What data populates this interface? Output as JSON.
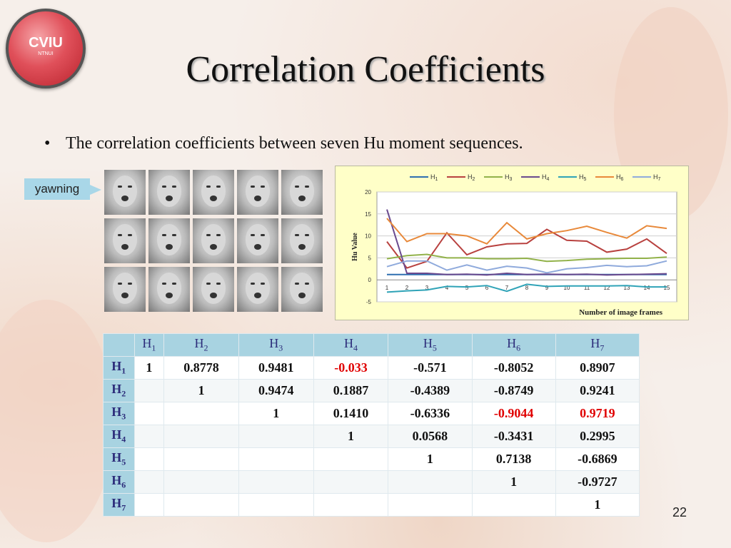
{
  "slide": {
    "logo_text": "CVIU",
    "logo_subtext": "NTNUI",
    "title": "Correlation Coefficients",
    "bullet": "The correlation coefficients between seven Hu moment sequences.",
    "tag": "yawning",
    "page_number": "22"
  },
  "colors": {
    "H1": "#2f6fb0",
    "H2": "#b8413f",
    "H3": "#92b24a",
    "H4": "#6a4a8e",
    "H5": "#2fa3b7",
    "H6": "#e8893a",
    "H7": "#8faadc",
    "table_header_bg": "#a8d3e1",
    "highlight": "#e00000"
  },
  "chart_data": {
    "type": "line",
    "ylabel": "Hu Value",
    "xlabel": "Number of image frames",
    "x": [
      1,
      2,
      3,
      4,
      5,
      6,
      7,
      8,
      9,
      10,
      11,
      12,
      13,
      14,
      15
    ],
    "ylim": [
      -5,
      20
    ],
    "yticks": [
      -5,
      0,
      5,
      10,
      15,
      20
    ],
    "grid": true,
    "legend": "top",
    "series": [
      {
        "name": "H1",
        "values": [
          1.2,
          1.2,
          1.2,
          1.2,
          1.2,
          1.2,
          1.2,
          1.2,
          1.2,
          1.2,
          1.2,
          1.2,
          1.2,
          1.2,
          1.2
        ]
      },
      {
        "name": "H2",
        "values": [
          8.7,
          2.7,
          4.2,
          10.7,
          5.7,
          7.5,
          8.2,
          8.3,
          11.5,
          9.0,
          8.8,
          6.3,
          7.0,
          9.3,
          6.0
        ]
      },
      {
        "name": "H3",
        "values": [
          4.8,
          5.5,
          5.8,
          5.0,
          5.0,
          4.8,
          4.8,
          4.9,
          4.2,
          4.4,
          4.7,
          4.8,
          4.9,
          4.9,
          5.2
        ]
      },
      {
        "name": "H4",
        "values": [
          16.0,
          1.5,
          1.5,
          1.2,
          1.3,
          1.1,
          1.5,
          1.2,
          1.3,
          1.2,
          1.3,
          1.1,
          1.2,
          1.3,
          1.4
        ]
      },
      {
        "name": "H5",
        "values": [
          -2.8,
          -2.5,
          -2.3,
          -1.5,
          -1.6,
          -1.3,
          -2.6,
          -1.0,
          -1.5,
          -1.4,
          -1.4,
          -1.4,
          -1.3,
          -1.6,
          -1.6
        ]
      },
      {
        "name": "H6",
        "values": [
          14.0,
          8.7,
          10.5,
          10.5,
          10.0,
          8.2,
          13.0,
          9.3,
          10.5,
          11.2,
          12.2,
          10.8,
          9.5,
          12.3,
          11.7
        ]
      },
      {
        "name": "H7",
        "values": [
          3.0,
          4.3,
          4.3,
          2.2,
          3.4,
          2.2,
          3.1,
          2.7,
          1.6,
          2.5,
          2.8,
          3.3,
          3.0,
          3.2,
          4.3
        ]
      }
    ]
  },
  "table": {
    "col_headers": [
      {
        "base": "H",
        "sub": "1"
      },
      {
        "base": "H",
        "sub": "2"
      },
      {
        "base": "H",
        "sub": "3"
      },
      {
        "base": "H",
        "sub": "4"
      },
      {
        "base": "H",
        "sub": "5"
      },
      {
        "base": "H",
        "sub": "6"
      },
      {
        "base": "H",
        "sub": "7"
      }
    ],
    "rows": [
      {
        "base": "H",
        "sub": "1",
        "cells": [
          "1",
          "0.8778",
          "0.9481",
          "-0.033",
          "-0.571",
          "-0.8052",
          "0.8907"
        ],
        "highlight": [
          3
        ]
      },
      {
        "base": "H",
        "sub": "2",
        "cells": [
          "",
          "1",
          "0.9474",
          "0.1887",
          "-0.4389",
          "-0.8749",
          "0.9241"
        ],
        "highlight": []
      },
      {
        "base": "H",
        "sub": "3",
        "cells": [
          "",
          "",
          "1",
          "0.1410",
          "-0.6336",
          "-0.9044",
          "0.9719"
        ],
        "highlight": [
          5,
          6
        ]
      },
      {
        "base": "H",
        "sub": "4",
        "cells": [
          "",
          "",
          "",
          "1",
          "0.0568",
          "-0.3431",
          "0.2995"
        ],
        "highlight": []
      },
      {
        "base": "H",
        "sub": "5",
        "cells": [
          "",
          "",
          "",
          "",
          "1",
          "0.7138",
          "-0.6869"
        ],
        "highlight": []
      },
      {
        "base": "H",
        "sub": "6",
        "cells": [
          "",
          "",
          "",
          "",
          "",
          "1",
          "-0.9727"
        ],
        "highlight": []
      },
      {
        "base": "H",
        "sub": "7",
        "cells": [
          "",
          "",
          "",
          "",
          "",
          "",
          "1"
        ],
        "highlight": []
      }
    ]
  }
}
